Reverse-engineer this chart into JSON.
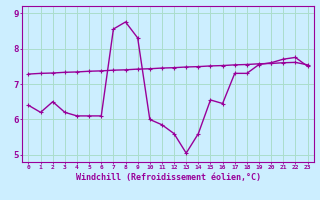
{
  "xlabel": "Windchill (Refroidissement éolien,°C)",
  "bg_color": "#cceeff",
  "line_color": "#990099",
  "grid_color": "#aaddcc",
  "x_hours": [
    0,
    1,
    2,
    3,
    4,
    5,
    6,
    7,
    8,
    9,
    10,
    11,
    12,
    13,
    14,
    15,
    16,
    17,
    18,
    19,
    20,
    21,
    22,
    23
  ],
  "windchill": [
    6.4,
    6.2,
    6.5,
    6.2,
    6.1,
    6.1,
    6.1,
    8.55,
    8.75,
    8.3,
    6.0,
    5.85,
    5.6,
    5.05,
    5.6,
    6.55,
    6.45,
    7.3,
    7.3,
    7.55,
    7.6,
    7.7,
    7.75,
    7.5
  ],
  "trend": [
    7.28,
    7.3,
    7.31,
    7.33,
    7.34,
    7.36,
    7.37,
    7.39,
    7.4,
    7.42,
    7.43,
    7.45,
    7.46,
    7.48,
    7.49,
    7.51,
    7.52,
    7.54,
    7.55,
    7.57,
    7.58,
    7.6,
    7.61,
    7.54
  ],
  "ylim": [
    4.8,
    9.2
  ],
  "yticks": [
    5,
    6,
    7,
    8,
    9
  ],
  "xlim": [
    -0.5,
    23.5
  ]
}
